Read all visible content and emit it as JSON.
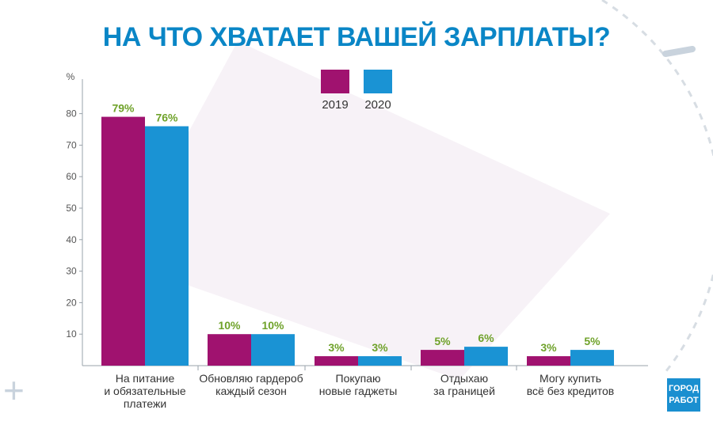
{
  "title": "НА ЧТО ХВАТАЕТ ВАШЕЙ ЗАРПЛАТЫ?",
  "colors": {
    "title": "#0a86c6",
    "s2019": "#a0126f",
    "s2020": "#1a93d4",
    "value_label": "#6fa22a"
  },
  "logo": {
    "line1": "ГОРОД",
    "line2": "РАБОТ"
  },
  "decor": {
    "plus_icon": "plus-icon"
  },
  "chart_data": {
    "type": "bar",
    "ylabel": "%",
    "ylim": [
      0,
      90
    ],
    "yticks": [
      10,
      20,
      30,
      40,
      50,
      60,
      70,
      80
    ],
    "grid": false,
    "legend": "top-center",
    "categories": [
      [
        "На питание",
        "и обязательные",
        "платежи"
      ],
      [
        "Обновляю гардероб",
        "каждый сезон"
      ],
      [
        "Покупаю",
        "новые гаджеты"
      ],
      [
        "Отдыхаю",
        "за границей"
      ],
      [
        "Могу купить",
        "всё без кредитов"
      ]
    ],
    "series": [
      {
        "name": "2019",
        "values": [
          79,
          10,
          3,
          5,
          3
        ],
        "labels": [
          "79%",
          "10%",
          "3%",
          "5%",
          "3%"
        ],
        "color": "#a0126f"
      },
      {
        "name": "2020",
        "values": [
          76,
          10,
          3,
          6,
          5
        ],
        "labels": [
          "76%",
          "10%",
          "3%",
          "6%",
          "5%"
        ],
        "color": "#1a93d4"
      }
    ]
  }
}
